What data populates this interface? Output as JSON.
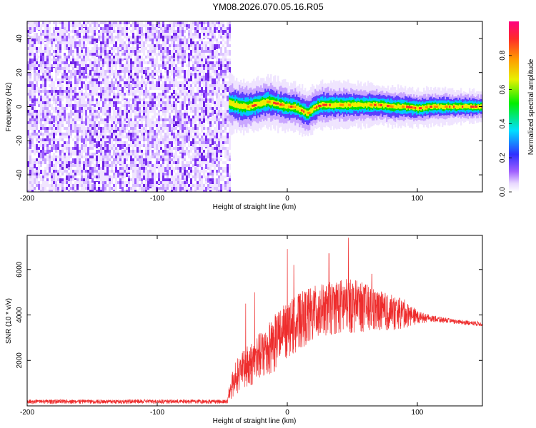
{
  "figure": {
    "title": "YM08.2026.070.05.16.R05"
  },
  "chart_data": [
    {
      "type": "heatmap",
      "xlabel": "Height of straight line (km)",
      "ylabel": "Frequency (Hz)",
      "xlim": [
        -200,
        150
      ],
      "ylim": [
        -50,
        50
      ],
      "xticks": [
        "-200",
        "-100",
        "0",
        "100"
      ],
      "xtick_values": [
        -200,
        -100,
        0,
        100
      ],
      "yticks": [
        "-40",
        "-20",
        "0",
        "20",
        "40"
      ],
      "ytick_values": [
        -40,
        -20,
        0,
        20,
        40
      ],
      "noise_region_x": [
        -200,
        -45
      ],
      "ridge": {
        "x": [
          -45,
          -40,
          -35,
          -30,
          -25,
          -20,
          -15,
          -10,
          -5,
          0,
          5,
          10,
          15,
          20,
          25,
          30,
          40,
          50,
          60,
          70,
          80,
          90,
          100,
          110,
          120,
          130,
          140,
          150
        ],
        "freq": [
          2,
          1,
          0,
          0,
          1,
          2,
          3,
          2,
          1,
          0,
          0,
          -2,
          -4,
          -1,
          1,
          1,
          1,
          1,
          1,
          1,
          0,
          0,
          -1,
          0,
          0,
          0,
          0,
          0
        ]
      },
      "colorbar": {
        "label": "Normalized spectral amplitude",
        "range": [
          0,
          1
        ],
        "ticks": [
          "0.0",
          "0.2",
          "0.4",
          "0.6",
          "0.8"
        ],
        "tick_values": [
          0.0,
          0.2,
          0.4,
          0.6,
          0.8
        ]
      }
    },
    {
      "type": "line",
      "xlabel": "Height of straight line (km)",
      "ylabel": "SNR (10 * v/v)",
      "xlim": [
        -200,
        150
      ],
      "ylim": [
        0,
        7500
      ],
      "xticks": [
        "-200",
        "-100",
        "0",
        "100"
      ],
      "xtick_values": [
        -200,
        -100,
        0,
        100
      ],
      "yticks": [
        "2000",
        "4000",
        "6000"
      ],
      "ytick_values": [
        2000,
        4000,
        6000
      ],
      "series_color": "#ee2d2d",
      "envelope": {
        "x": [
          -200,
          -100,
          -46,
          -45,
          -40,
          -30,
          -20,
          -10,
          0,
          10,
          20,
          30,
          40,
          50,
          60,
          70,
          80,
          90,
          100,
          110,
          130,
          150
        ],
        "base": [
          100,
          100,
          100,
          200,
          500,
          800,
          1200,
          1500,
          2100,
          2500,
          2900,
          3100,
          3200,
          3200,
          3300,
          3300,
          3300,
          3400,
          3600,
          3700,
          3600,
          3500
        ],
        "top": [
          280,
          280,
          280,
          800,
          2000,
          2700,
          3300,
          4000,
          4600,
          5000,
          5300,
          5400,
          5600,
          5600,
          5400,
          5100,
          4900,
          4700,
          4200,
          4000,
          3800,
          3700
        ]
      },
      "spikes": [
        {
          "x": -32,
          "y": 4500
        },
        {
          "x": -25,
          "y": 5000
        },
        {
          "x": 0,
          "y": 6900
        },
        {
          "x": 5,
          "y": 6200
        },
        {
          "x": 32,
          "y": 6700
        },
        {
          "x": 47,
          "y": 7400
        },
        {
          "x": 65,
          "y": 5800
        }
      ]
    }
  ]
}
